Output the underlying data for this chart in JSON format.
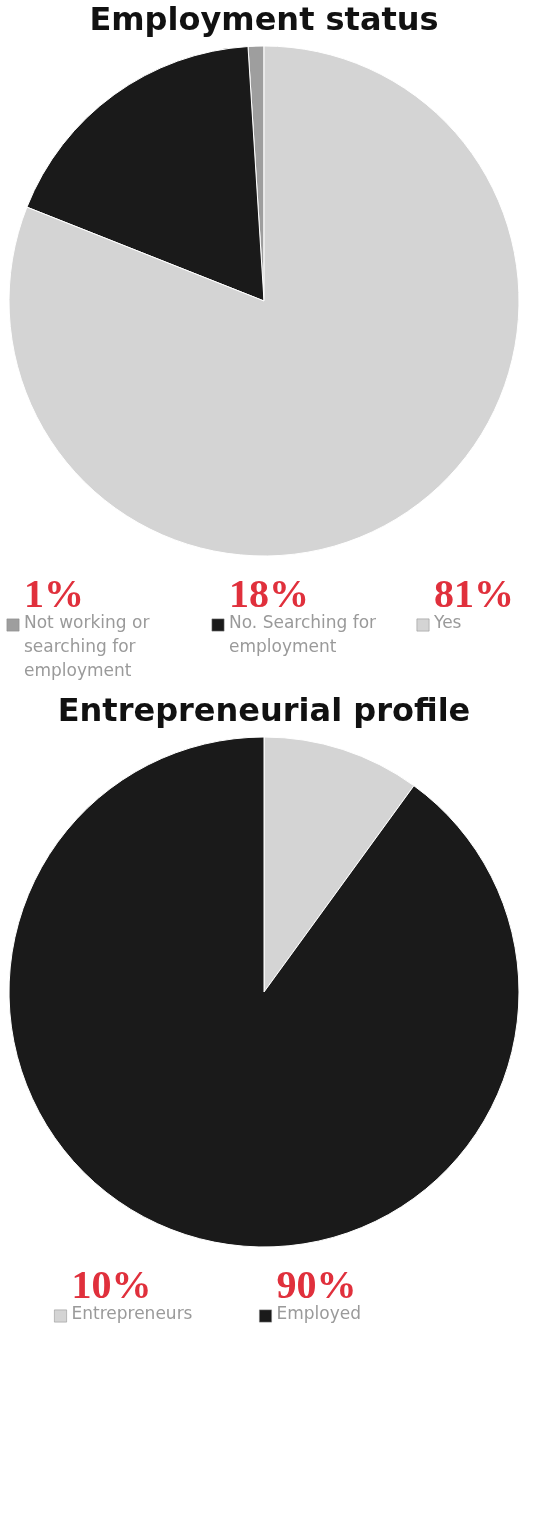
{
  "chart_data": [
    {
      "type": "pie",
      "title": "Employment status",
      "categories": [
        "Not working or searching for employment",
        "No. Searching for employment",
        "Yes"
      ],
      "values": [
        1,
        18,
        81
      ],
      "colors": [
        "#9e9e9e",
        "#1a1a1a",
        "#d4d4d4"
      ],
      "value_labels": [
        "1%",
        "18%",
        "81%"
      ],
      "legend": "bottom"
    },
    {
      "type": "pie",
      "title": "Entrepreneurial profile",
      "categories": [
        "Entrepreneurs",
        "Employed"
      ],
      "values": [
        10,
        90
      ],
      "colors": [
        "#d4d4d4",
        "#1a1a1a"
      ],
      "value_labels": [
        "10%",
        "90%"
      ],
      "legend": "bottom"
    }
  ]
}
